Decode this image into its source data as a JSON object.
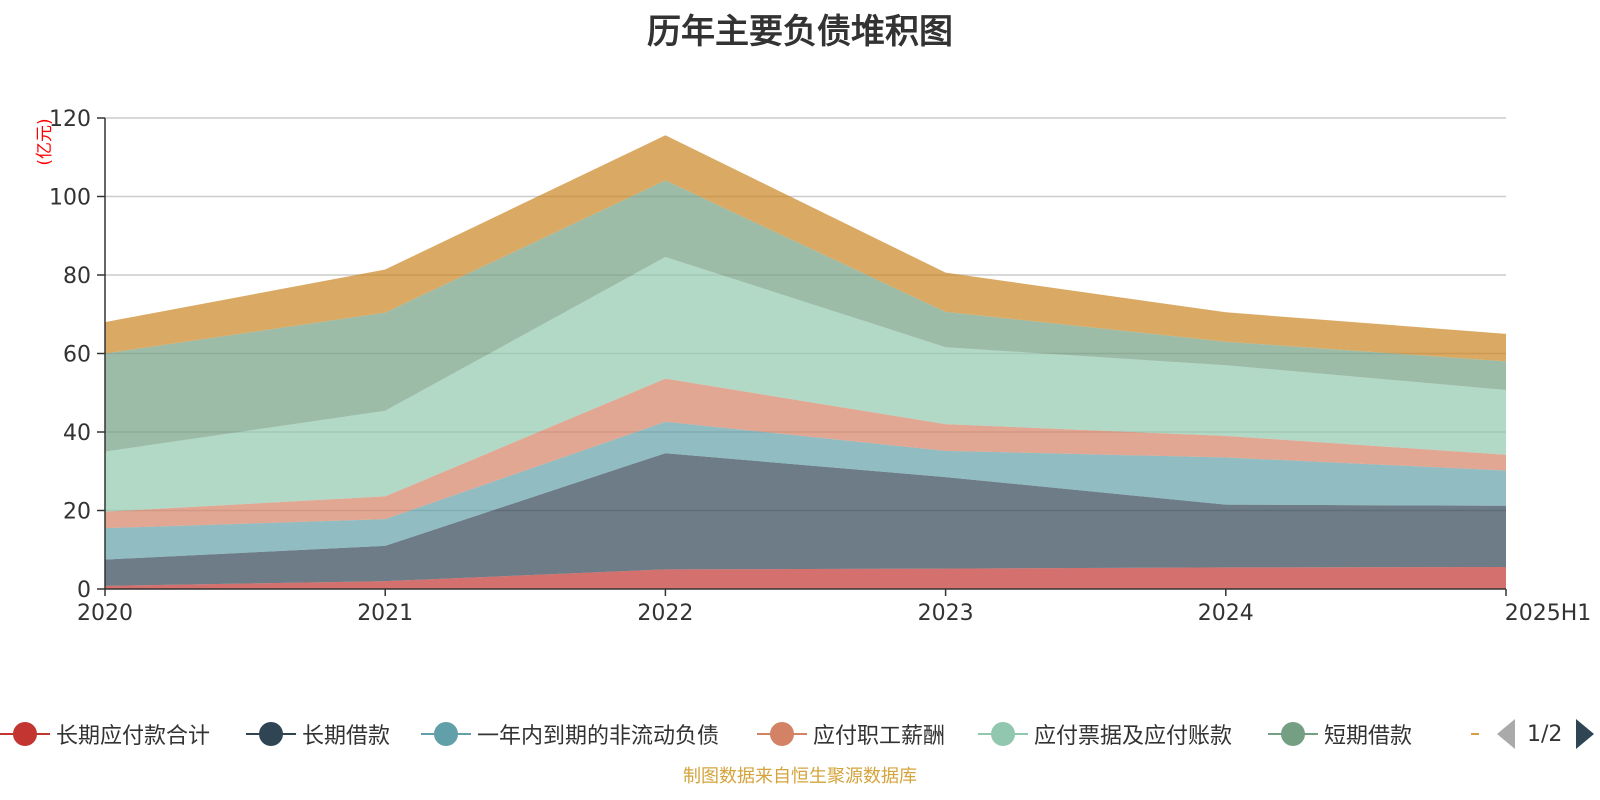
{
  "chart_data": {
    "type": "area",
    "stacked": true,
    "title": "历年主要负债堆积图",
    "ylabel": "(亿元)",
    "xlabel": "",
    "x": [
      "2020",
      "2021",
      "2022",
      "2023",
      "2024",
      "2025H1"
    ],
    "ylim": [
      0,
      120
    ],
    "yticks": [
      0,
      20,
      40,
      60,
      80,
      100,
      120
    ],
    "grid": true,
    "legend_position": "bottom",
    "series": [
      {
        "name": "长期应付款合计",
        "color": "#c23531",
        "values": [
          0.8,
          2.0,
          5.0,
          5.2,
          5.5,
          5.6
        ]
      },
      {
        "name": "长期借款",
        "color": "#2f4554",
        "values": [
          6.7,
          9.0,
          29.6,
          23.3,
          16.0,
          15.6
        ]
      },
      {
        "name": "一年内到期的非流动负债",
        "color": "#61a0a8",
        "values": [
          8.0,
          6.8,
          8.0,
          6.7,
          12.0,
          9.0
        ]
      },
      {
        "name": "应付职工薪酬",
        "color": "#d48265",
        "values": [
          4.2,
          5.8,
          11.0,
          6.8,
          5.5,
          4.0
        ]
      },
      {
        "name": "应付票据及应付账款",
        "color": "#91c7ae",
        "values": [
          15.3,
          21.8,
          31.0,
          19.6,
          18.0,
          16.5
        ]
      },
      {
        "name": "短期借款",
        "color": "#749f83",
        "values": [
          25.0,
          25.0,
          19.5,
          9.0,
          6.0,
          7.3
        ]
      },
      {
        "name": "",
        "color": "#ca8622",
        "values": [
          8.0,
          11.0,
          11.5,
          10.0,
          7.5,
          7.0
        ]
      }
    ]
  },
  "legend": {
    "items": [
      {
        "label": "长期应付款合计",
        "color": "#c23531"
      },
      {
        "label": "长期借款",
        "color": "#2f4554"
      },
      {
        "label": "一年内到期的非流动负债",
        "color": "#61a0a8"
      },
      {
        "label": "应付职工薪酬",
        "color": "#d48265"
      },
      {
        "label": "应付票据及应付账款",
        "color": "#91c7ae"
      },
      {
        "label": "短期借款",
        "color": "#749f83"
      }
    ],
    "page": "1/2"
  },
  "source_note": "制图数据来自恒生聚源数据库"
}
